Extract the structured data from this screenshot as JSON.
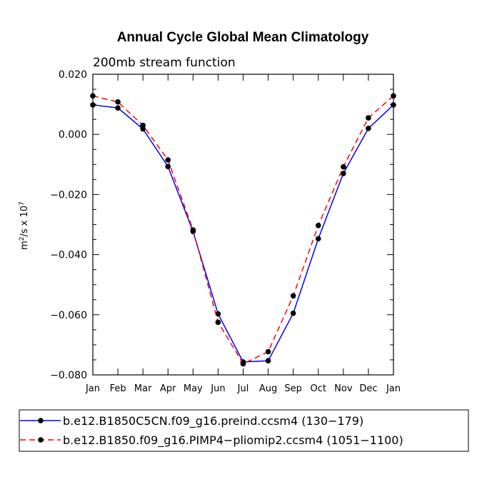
{
  "chart_data": {
    "type": "line",
    "title": "Annual Cycle Global Mean Climatology",
    "subtitle": "200mb stream function",
    "ylabel_base": "m",
    "ylabel_sup1": "2",
    "ylabel_mid": "/s x 10",
    "ylabel_sup2": "7",
    "xlabel": "",
    "categories": [
      "Jan",
      "Feb",
      "Mar",
      "Apr",
      "May",
      "Jun",
      "Jul",
      "Aug",
      "Sep",
      "Oct",
      "Nov",
      "Dec",
      "Jan"
    ],
    "ylim": [
      -0.08,
      0.02
    ],
    "yticks": [
      -0.08,
      -0.06,
      -0.04,
      -0.02,
      0.0,
      0.02
    ],
    "ytick_labels": [
      "−0.080",
      "−0.060",
      "−0.040",
      "−0.020",
      "0.000",
      "0.020"
    ],
    "grid": false,
    "legend_position": "bottom",
    "series": [
      {
        "name": "b.e12.B1850C5CN.f09_g16.preind.ccsm4 (130−179)",
        "color": "#0000ff",
        "dash": "solid",
        "marker": "circle",
        "values": [
          0.0098,
          0.0088,
          0.0018,
          -0.0107,
          -0.0323,
          -0.0597,
          -0.0757,
          -0.0753,
          -0.0595,
          -0.0347,
          -0.013,
          0.002,
          0.0098
        ]
      },
      {
        "name": "b.e12.B1850.f09_g16.PIMP4−pliomip2.ccsm4 (1051−1100)",
        "color": "#ff0000",
        "dash": "dashed",
        "marker": "circle",
        "values": [
          0.0128,
          0.0108,
          0.003,
          -0.0085,
          -0.0318,
          -0.0625,
          -0.0763,
          -0.0723,
          -0.0537,
          -0.0303,
          -0.0108,
          0.0055,
          0.0128
        ]
      }
    ]
  }
}
